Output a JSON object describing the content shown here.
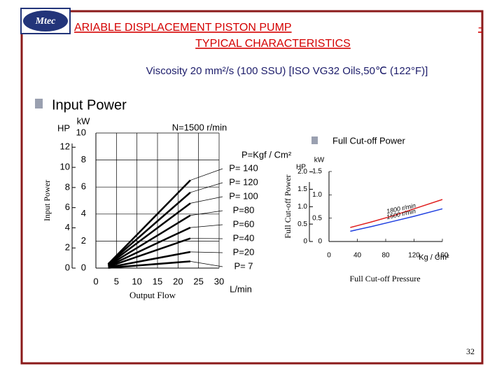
{
  "slide": {
    "title": "ARIABLE DISPLACEMENT PISTON PUMP",
    "subtitle": "TYPICAL CHARACTERISTICS",
    "dash": "-",
    "logo": "Mtec",
    "conditions": "Viscosity 20 mm²/s (100 SSU) [ISO VG32 Oils,50℃ (122°F)]",
    "page_number": "32"
  },
  "chart_data": [
    {
      "type": "line",
      "title": "Input Power",
      "speed": "N=1500 r/min",
      "ylabel": "Input Power",
      "xlabel": "Output Flow",
      "x_unit": "L/min",
      "y_unit": "kW",
      "y2_unit": "HP",
      "annotation": "P=Kgf / Cm²",
      "grid": true,
      "x": [
        3,
        23
      ],
      "xlim": [
        0,
        30
      ],
      "xticks": [
        0,
        5,
        10,
        15,
        20,
        25,
        30
      ],
      "ylim": [
        0,
        10
      ],
      "yticks": [
        0,
        2,
        4,
        6,
        8,
        10
      ],
      "y2lim": [
        0,
        13.41
      ],
      "y2ticks": [
        0,
        2,
        4,
        6,
        8,
        10,
        12
      ],
      "series": [
        {
          "name": "P= 140",
          "color": "#000000",
          "values": [
            0.3,
            6.5
          ]
        },
        {
          "name": "P= 120",
          "color": "#000000",
          "values": [
            0.3,
            5.6
          ]
        },
        {
          "name": "P= 100",
          "color": "#000000",
          "values": [
            0.25,
            4.8
          ]
        },
        {
          "name": "P=80",
          "color": "#000000",
          "values": [
            0.2,
            3.9
          ]
        },
        {
          "name": "P=60",
          "color": "#000000",
          "values": [
            0.15,
            3.0
          ]
        },
        {
          "name": "P=40",
          "color": "#000000",
          "values": [
            0.1,
            2.2
          ]
        },
        {
          "name": "P=20",
          "color": "#000000",
          "values": [
            0.05,
            1.2
          ]
        },
        {
          "name": "P=  7",
          "color": "#000000",
          "values": [
            0.02,
            0.5
          ]
        }
      ]
    },
    {
      "type": "line",
      "title": "Full Cut-off Power",
      "ylabel": "Full Cut-off Power",
      "xlabel": "Full Cut-off Pressure",
      "x_unit": "Kg / Cm²",
      "y_unit": "kW",
      "y2_unit": "HP",
      "grid": false,
      "x": [
        30,
        60,
        90,
        120,
        160
      ],
      "xlim": [
        0,
        160
      ],
      "xticks": [
        0,
        40,
        80,
        120,
        160
      ],
      "ylim": [
        0,
        1.5
      ],
      "yticks": [
        0,
        {
          "value": 0.5,
          "label": "0.5"
        },
        {
          "value": 1,
          "label": "1.0"
        },
        {
          "value": 1.5,
          "label": "1.5"
        }
      ],
      "y2lim": [
        0,
        2.01
      ],
      "y2ticks": [
        0,
        {
          "value": 0.5,
          "label": "0.5"
        },
        {
          "value": 1,
          "label": "1.0"
        },
        {
          "value": 1.5,
          "label": "1.5"
        },
        {
          "value": 2,
          "label": "2.0"
        }
      ],
      "series": [
        {
          "name": "1800 r/min",
          "color": "#e02020",
          "values": [
            0.3,
            0.42,
            0.55,
            0.7,
            0.9
          ]
        },
        {
          "name": "1500 r/min",
          "color": "#2040e0",
          "values": [
            0.22,
            0.32,
            0.43,
            0.54,
            0.7
          ]
        }
      ]
    }
  ]
}
